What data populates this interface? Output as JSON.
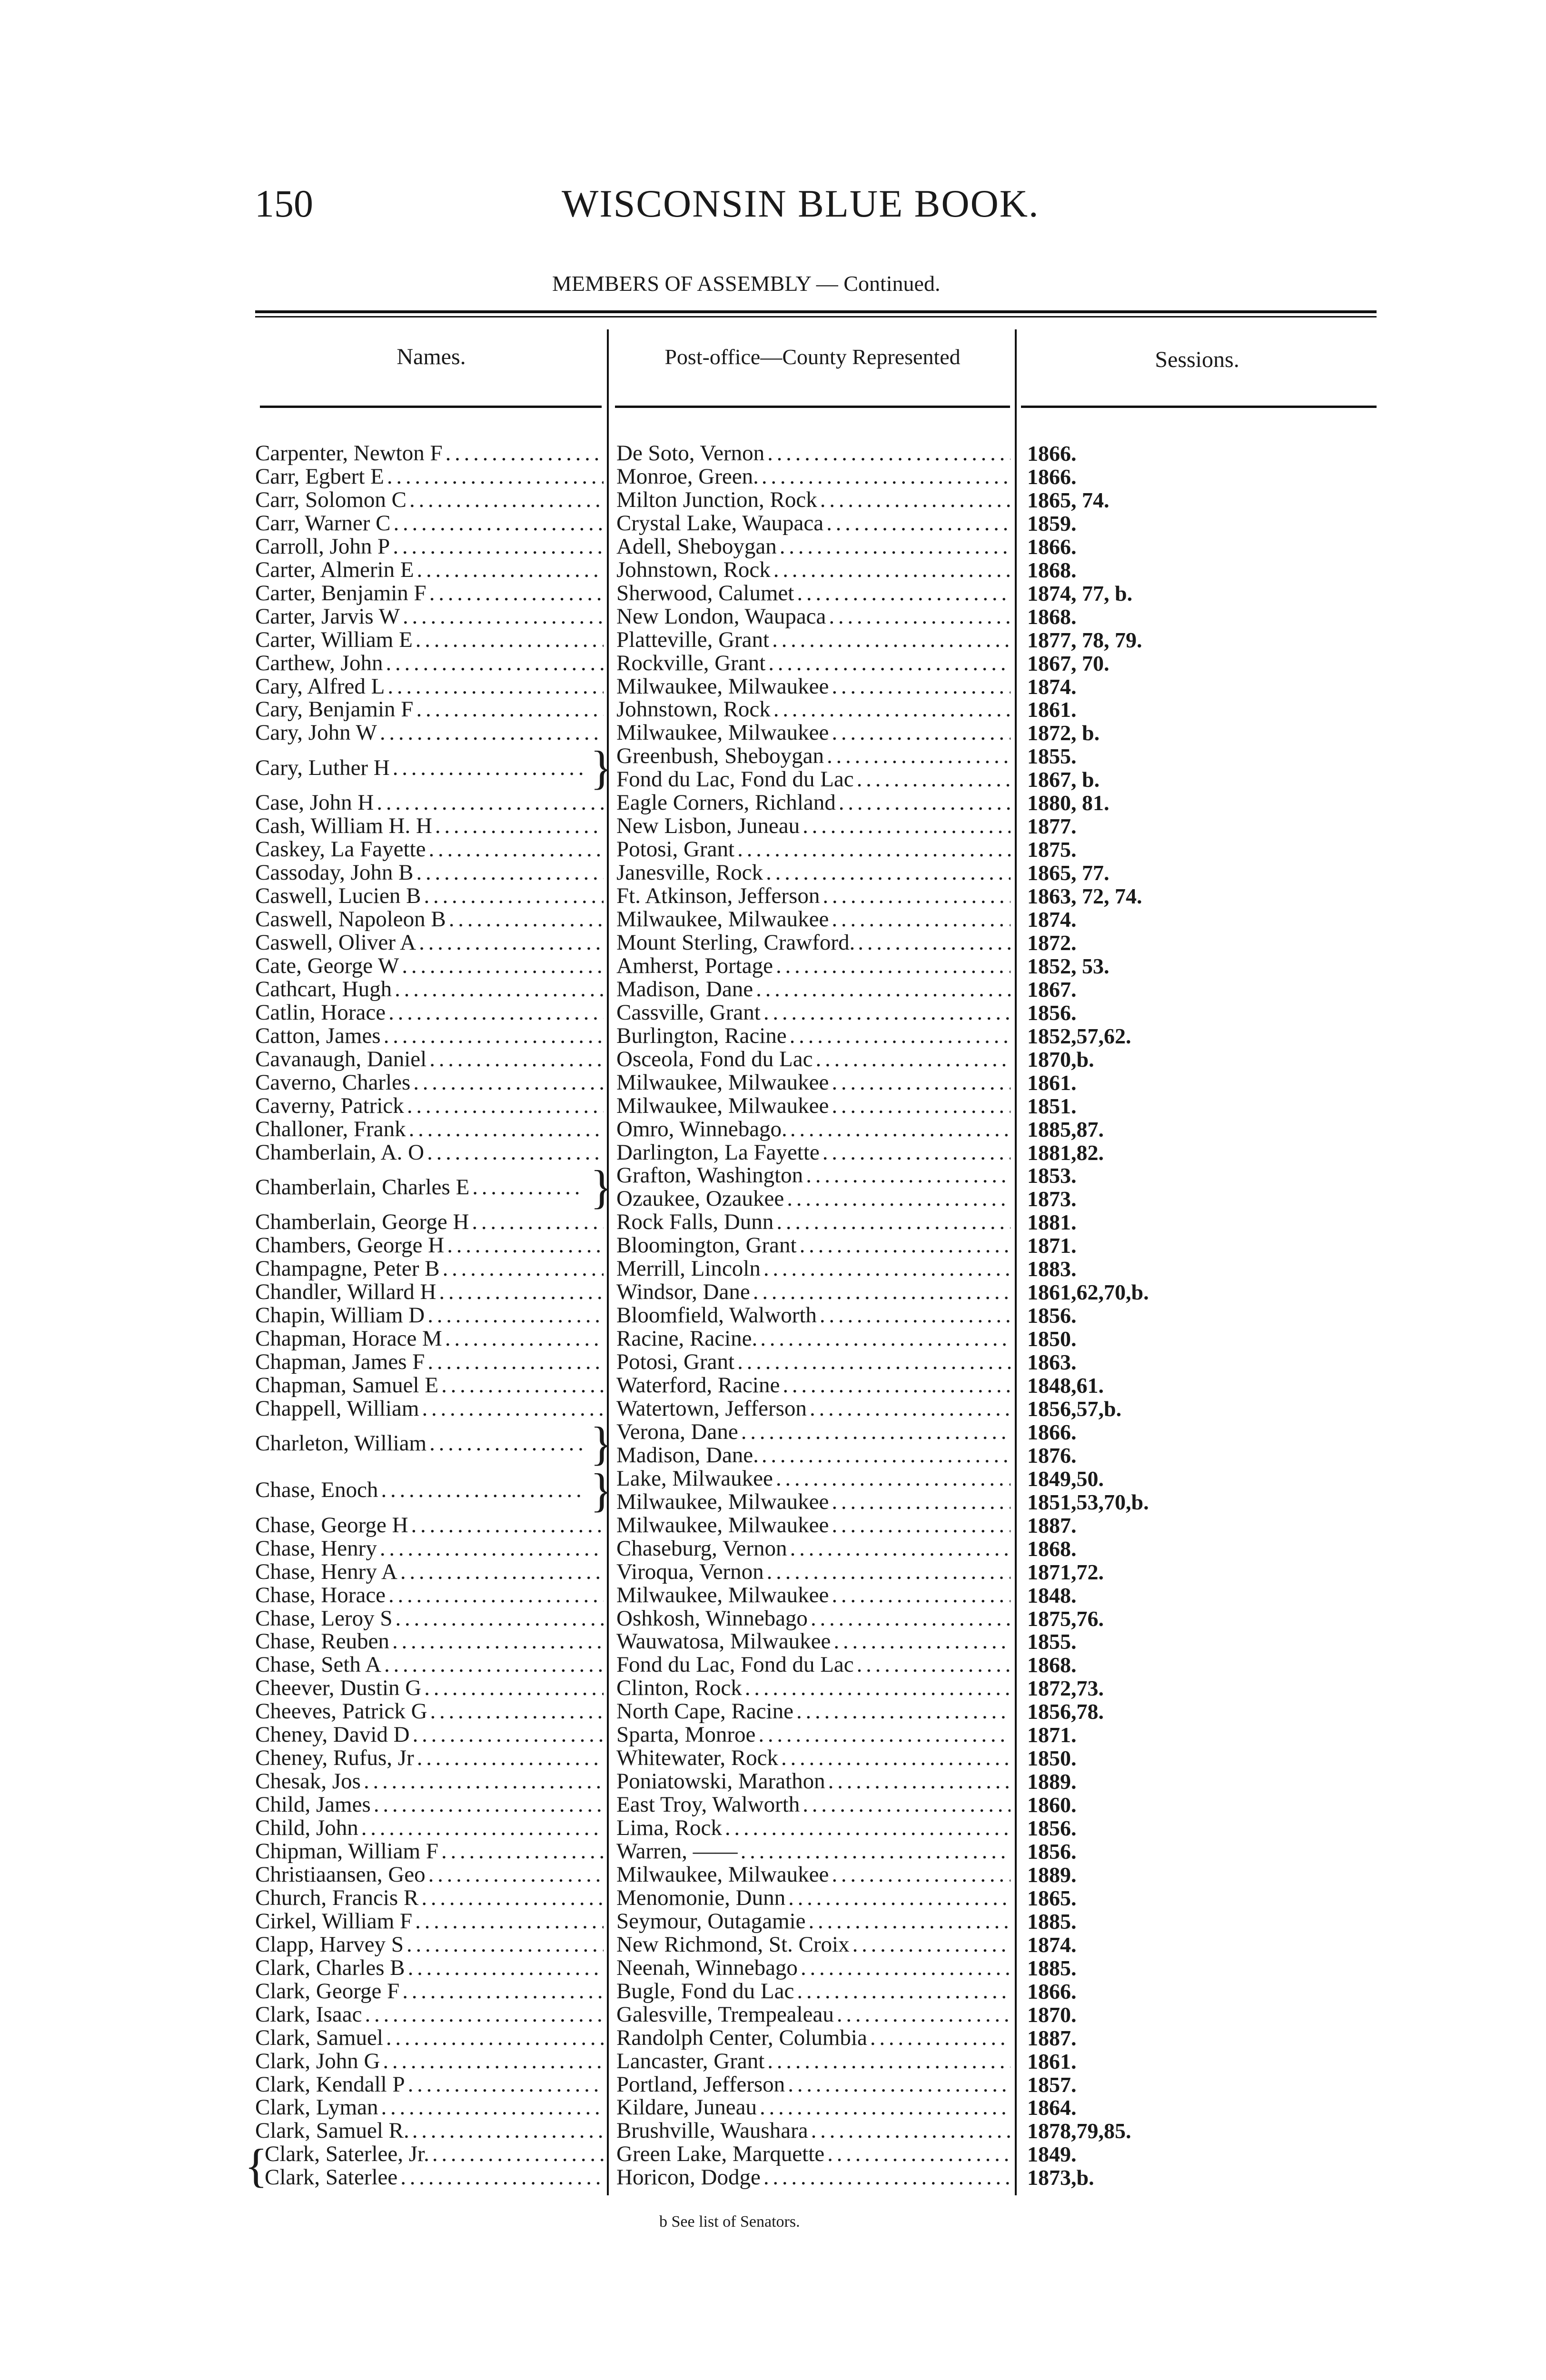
{
  "header": {
    "page_number": "150",
    "running_title": "WISCONSIN BLUE BOOK."
  },
  "subtitle": "MEMBERS OF ASSEMBLY — Continued.",
  "columns": {
    "names": "Names.",
    "post_office": "Post-office—County Represented",
    "sessions": "Sessions."
  },
  "entries": [
    {
      "name": "Carpenter, Newton F",
      "lines": [
        {
          "place": "De Soto, Vernon",
          "sessions": "1866."
        }
      ]
    },
    {
      "name": "Carr, Egbert E",
      "lines": [
        {
          "place": "Monroe, Green.",
          "sessions": "1866."
        }
      ]
    },
    {
      "name": "Carr, Solomon C",
      "lines": [
        {
          "place": "Milton Junction, Rock",
          "sessions": "1865, 74."
        }
      ]
    },
    {
      "name": "Carr, Warner C",
      "lines": [
        {
          "place": "Crystal Lake, Waupaca",
          "sessions": "1859."
        }
      ]
    },
    {
      "name": "Carroll, John P",
      "lines": [
        {
          "place": "Adell, Sheboygan",
          "sessions": "1866."
        }
      ]
    },
    {
      "name": "Carter, Almerin E",
      "lines": [
        {
          "place": "Johnstown, Rock",
          "sessions": "1868."
        }
      ]
    },
    {
      "name": "Carter, Benjamin F",
      "lines": [
        {
          "place": "Sherwood, Calumet",
          "sessions": "1874, 77, b."
        }
      ]
    },
    {
      "name": "Carter, Jarvis W",
      "lines": [
        {
          "place": "New London, Waupaca",
          "sessions": "1868."
        }
      ]
    },
    {
      "name": "Carter, William E",
      "lines": [
        {
          "place": "Platteville, Grant",
          "sessions": "1877, 78, 79."
        }
      ]
    },
    {
      "name": "Carthew, John",
      "lines": [
        {
          "place": "Rockville, Grant",
          "sessions": "1867, 70."
        }
      ]
    },
    {
      "name": "Cary, Alfred L",
      "lines": [
        {
          "place": "Milwaukee, Milwaukee",
          "sessions": "1874."
        }
      ]
    },
    {
      "name": "Cary, Benjamin F",
      "lines": [
        {
          "place": "Johnstown, Rock",
          "sessions": "1861."
        }
      ]
    },
    {
      "name": "Cary, John W",
      "lines": [
        {
          "place": "Milwaukee, Milwaukee",
          "sessions": "1872, b."
        }
      ]
    },
    {
      "name": "Cary, Luther H",
      "lines": [
        {
          "place": "Greenbush, Sheboygan",
          "sessions": "1855."
        },
        {
          "place": "Fond du Lac, Fond du Lac",
          "sessions": "1867, b."
        }
      ]
    },
    {
      "name": "Case, John H",
      "lines": [
        {
          "place": "Eagle Corners, Richland",
          "sessions": "1880, 81."
        }
      ]
    },
    {
      "name": "Cash, William H. H",
      "lines": [
        {
          "place": "New Lisbon, Juneau",
          "sessions": "1877."
        }
      ]
    },
    {
      "name": "Caskey, La Fayette",
      "lines": [
        {
          "place": "Potosi, Grant",
          "sessions": "1875."
        }
      ]
    },
    {
      "name": "Cassoday, John B",
      "lines": [
        {
          "place": "Janesville, Rock",
          "sessions": "1865, 77."
        }
      ]
    },
    {
      "name": "Caswell, Lucien B",
      "lines": [
        {
          "place": "Ft. Atkinson, Jefferson",
          "sessions": "1863, 72, 74."
        }
      ]
    },
    {
      "name": "Caswell, Napoleon B",
      "lines": [
        {
          "place": "Milwaukee, Milwaukee",
          "sessions": "1874."
        }
      ]
    },
    {
      "name": "Caswell, Oliver A",
      "lines": [
        {
          "place": "Mount Sterling, Crawford.",
          "sessions": "1872."
        }
      ]
    },
    {
      "name": "Cate, George W",
      "lines": [
        {
          "place": "Amherst, Portage",
          "sessions": "1852, 53."
        }
      ]
    },
    {
      "name": "Cathcart, Hugh",
      "lines": [
        {
          "place": "Madison, Dane",
          "sessions": "1867."
        }
      ]
    },
    {
      "name": "Catlin, Horace",
      "lines": [
        {
          "place": "Cassville, Grant",
          "sessions": "1856."
        }
      ]
    },
    {
      "name": "Catton, James",
      "lines": [
        {
          "place": "Burlington, Racine",
          "sessions": "1852,57,62."
        }
      ]
    },
    {
      "name": "Cavanaugh, Daniel",
      "lines": [
        {
          "place": "Osceola, Fond du Lac",
          "sessions": "1870,b."
        }
      ]
    },
    {
      "name": "Caverno, Charles",
      "lines": [
        {
          "place": "Milwaukee, Milwaukee",
          "sessions": "1861."
        }
      ]
    },
    {
      "name": "Caverny, Patrick",
      "lines": [
        {
          "place": "Milwaukee, Milwaukee",
          "sessions": "1851."
        }
      ]
    },
    {
      "name": "Challoner, Frank",
      "lines": [
        {
          "place": "Omro, Winnebago.",
          "sessions": "1885,87."
        }
      ]
    },
    {
      "name": "Chamberlain, A. O",
      "lines": [
        {
          "place": "Darlington, La Fayette",
          "sessions": "1881,82."
        }
      ]
    },
    {
      "name": "Chamberlain, Charles E",
      "lines": [
        {
          "place": "Grafton, Washington",
          "sessions": "1853."
        },
        {
          "place": "Ozaukee, Ozaukee",
          "sessions": "1873."
        }
      ]
    },
    {
      "name": "Chamberlain, George H",
      "lines": [
        {
          "place": "Rock Falls, Dunn",
          "sessions": "1881."
        }
      ]
    },
    {
      "name": "Chambers, George H",
      "lines": [
        {
          "place": "Bloomington, Grant",
          "sessions": "1871."
        }
      ]
    },
    {
      "name": "Champagne, Peter B",
      "lines": [
        {
          "place": "Merrill, Lincoln",
          "sessions": "1883."
        }
      ]
    },
    {
      "name": "Chandler, Willard H",
      "lines": [
        {
          "place": "Windsor, Dane",
          "sessions": "1861,62,70,b."
        }
      ]
    },
    {
      "name": "Chapin, William D",
      "lines": [
        {
          "place": "Bloomfield, Walworth",
          "sessions": "1856."
        }
      ]
    },
    {
      "name": "Chapman, Horace M",
      "lines": [
        {
          "place": "Racine, Racine.",
          "sessions": "1850."
        }
      ]
    },
    {
      "name": "Chapman, James F",
      "lines": [
        {
          "place": "Potosi, Grant",
          "sessions": "1863."
        }
      ]
    },
    {
      "name": "Chapman, Samuel E",
      "lines": [
        {
          "place": "Waterford, Racine",
          "sessions": "1848,61."
        }
      ]
    },
    {
      "name": "Chappell, William",
      "lines": [
        {
          "place": "Watertown, Jefferson",
          "sessions": "1856,57,b."
        }
      ]
    },
    {
      "name": "Charleton, William",
      "lines": [
        {
          "place": "Verona, Dane",
          "sessions": "1866."
        },
        {
          "place": "Madison, Dane.",
          "sessions": "1876."
        }
      ]
    },
    {
      "name": "Chase, Enoch",
      "lines": [
        {
          "place": "Lake, Milwaukee",
          "sessions": "1849,50."
        },
        {
          "place": "Milwaukee, Milwaukee",
          "sessions": "1851,53,70,b."
        }
      ]
    },
    {
      "name": "Chase, George H",
      "lines": [
        {
          "place": "Milwaukee, Milwaukee",
          "sessions": "1887."
        }
      ]
    },
    {
      "name": "Chase, Henry",
      "lines": [
        {
          "place": "Chaseburg, Vernon",
          "sessions": "1868."
        }
      ]
    },
    {
      "name": "Chase, Henry A",
      "lines": [
        {
          "place": "Viroqua, Vernon",
          "sessions": "1871,72."
        }
      ]
    },
    {
      "name": "Chase, Horace",
      "lines": [
        {
          "place": "Milwaukee, Milwaukee",
          "sessions": "1848."
        }
      ]
    },
    {
      "name": "Chase, Leroy S",
      "lines": [
        {
          "place": "Oshkosh, Winnebago",
          "sessions": "1875,76."
        }
      ]
    },
    {
      "name": "Chase, Reuben",
      "lines": [
        {
          "place": "Wauwatosa, Milwaukee",
          "sessions": "1855."
        }
      ]
    },
    {
      "name": "Chase, Seth A",
      "lines": [
        {
          "place": "Fond du Lac, Fond du Lac",
          "sessions": "1868."
        }
      ]
    },
    {
      "name": "Cheever, Dustin G",
      "lines": [
        {
          "place": "Clinton, Rock",
          "sessions": "1872,73."
        }
      ]
    },
    {
      "name": "Cheeves, Patrick G",
      "lines": [
        {
          "place": "North Cape, Racine",
          "sessions": "1856,78."
        }
      ]
    },
    {
      "name": "Cheney, David D",
      "lines": [
        {
          "place": "Sparta, Monroe",
          "sessions": "1871."
        }
      ]
    },
    {
      "name": "Cheney, Rufus, Jr",
      "lines": [
        {
          "place": "Whitewater, Rock",
          "sessions": "1850."
        }
      ]
    },
    {
      "name": "Chesak, Jos",
      "lines": [
        {
          "place": "Poniatowski, Marathon",
          "sessions": "1889."
        }
      ]
    },
    {
      "name": "Child, James",
      "lines": [
        {
          "place": "East Troy, Walworth",
          "sessions": "1860."
        }
      ]
    },
    {
      "name": "Child, John",
      "lines": [
        {
          "place": "Lima, Rock",
          "sessions": "1856."
        }
      ]
    },
    {
      "name": "Chipman, William F",
      "lines": [
        {
          "place": "Warren, ——",
          "sessions": "1856."
        }
      ]
    },
    {
      "name": "Christiaansen, Geo",
      "lines": [
        {
          "place": "Milwaukee, Milwaukee",
          "sessions": "1889."
        }
      ]
    },
    {
      "name": "Church, Francis R",
      "lines": [
        {
          "place": "Menomonie, Dunn",
          "sessions": "1865."
        }
      ]
    },
    {
      "name": "Cirkel, William F",
      "lines": [
        {
          "place": "Seymour, Outagamie",
          "sessions": "1885."
        }
      ]
    },
    {
      "name": "Clapp, Harvey S",
      "lines": [
        {
          "place": "New Richmond, St. Croix",
          "sessions": "1874."
        }
      ]
    },
    {
      "name": "Clark, Charles B",
      "lines": [
        {
          "place": "Neenah, Winnebago",
          "sessions": "1885."
        }
      ]
    },
    {
      "name": "Clark, George F",
      "lines": [
        {
          "place": "Bugle, Fond du Lac",
          "sessions": "1866."
        }
      ]
    },
    {
      "name": "Clark, Isaac",
      "lines": [
        {
          "place": "Galesville, Trempealeau",
          "sessions": "1870."
        }
      ]
    },
    {
      "name": "Clark, Samuel",
      "lines": [
        {
          "place": "Randolph Center, Columbia",
          "sessions": "1887."
        }
      ]
    },
    {
      "name": "Clark, John G",
      "lines": [
        {
          "place": "Lancaster, Grant",
          "sessions": "1861."
        }
      ]
    },
    {
      "name": "Clark, Kendall P",
      "lines": [
        {
          "place": "Portland, Jefferson",
          "sessions": "1857."
        }
      ]
    },
    {
      "name": "Clark, Lyman",
      "lines": [
        {
          "place": "Kildare, Juneau",
          "sessions": "1864."
        }
      ]
    },
    {
      "name": "Clark, Samuel R.",
      "lines": [
        {
          "place": "Brushville, Waushara",
          "sessions": "1878,79,85."
        }
      ]
    },
    {
      "name": "Clark, Saterlee, Jr.",
      "grouped": true,
      "lines": [
        {
          "place": "Green Lake, Marquette",
          "sessions": "1849."
        }
      ]
    },
    {
      "name": "Clark, Saterlee",
      "grouped": true,
      "lines": [
        {
          "place": "Horicon, Dodge",
          "sessions": "1873,b."
        }
      ]
    }
  ],
  "footnote": "b See list of Senators."
}
